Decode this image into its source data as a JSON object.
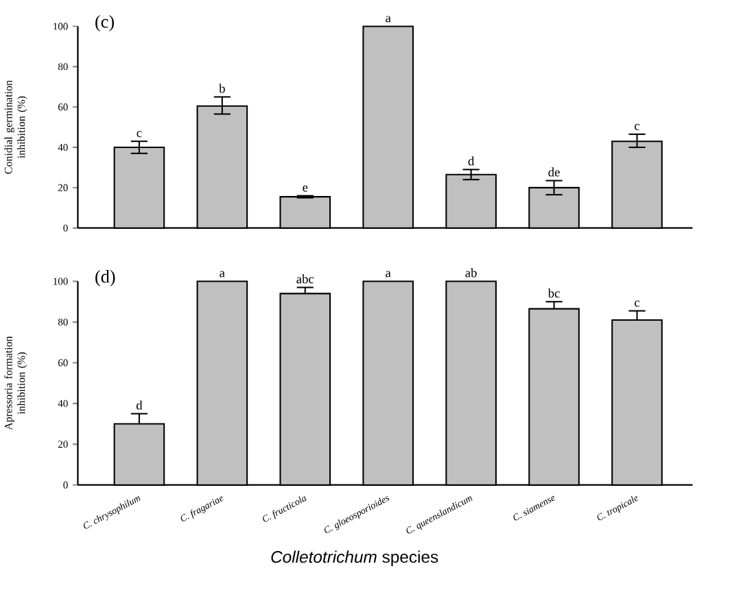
{
  "chart_data": [
    {
      "type": "bar",
      "title": "(c)",
      "ylabel": "Conidial germination inhibition (%)",
      "categories": [
        "C. chrysophilum",
        "C. fragariae",
        "C. fructicola",
        "C. gloeosporioides",
        "C. queenslandicum",
        "C. siamense",
        "C. tropicale"
      ],
      "values": [
        40,
        60.5,
        15.5,
        100,
        26.5,
        20,
        43
      ],
      "color": "#c0c0c0",
      "errors": [
        [
          37,
          43
        ],
        [
          56.5,
          65
        ],
        [
          15,
          16
        ],
        null,
        [
          24,
          29
        ],
        [
          16.5,
          23.5
        ],
        [
          40,
          46.5
        ]
      ],
      "ylim": [
        0,
        100
      ],
      "yticks": [
        0,
        20,
        40,
        60,
        80,
        100
      ],
      "tick_labels": "y",
      "annotations": [
        {
          "text": "c",
          "x": "C. chrysophilum",
          "y": 43
        },
        {
          "text": "b",
          "x": "C. fragariae",
          "y": 65
        },
        {
          "text": "e",
          "x": "C. fructicola",
          "y": 16
        },
        {
          "text": "a",
          "x": "C. gloeosporioides",
          "y": 100
        },
        {
          "text": "d",
          "x": "C. queenslandicum",
          "y": 29
        },
        {
          "text": "de",
          "x": "C. siamense",
          "y": 23.5
        },
        {
          "text": "c",
          "x": "C. tropicale",
          "y": 46.5
        }
      ]
    },
    {
      "type": "bar",
      "title": "(d)",
      "ylabel": "Apressoria formation inhibition (%)",
      "xlabel": "*Colletotrichum* species",
      "categories": [
        "C. chrysophilum",
        "C. fragariae",
        "C. fructicola",
        "C. gloeosporioides",
        "C. queenslandicum",
        "C. siamense",
        "C. tropicale"
      ],
      "values": [
        30,
        100,
        94,
        100,
        100,
        86.5,
        81
      ],
      "color": "#c0c0c0",
      "errors": [
        [
          30,
          35
        ],
        null,
        [
          94,
          97
        ],
        null,
        null,
        [
          86.5,
          90
        ],
        [
          81,
          85.5
        ]
      ],
      "ylim": [
        0,
        100
      ],
      "yticks": [
        0,
        20,
        40,
        60,
        80,
        100
      ],
      "annotations": [
        {
          "text": "d",
          "x": "C. chrysophilum",
          "y": 35
        },
        {
          "text": "a",
          "x": "C. fragariae",
          "y": 100
        },
        {
          "text": "abc",
          "x": "C. fructicola",
          "y": 97
        },
        {
          "text": "a",
          "x": "C. gloeosporioides",
          "y": 100
        },
        {
          "text": "ab",
          "x": "C. queenslandicum",
          "y": 100
        },
        {
          "text": "bc",
          "x": "C. siamense",
          "y": 90
        },
        {
          "text": "c",
          "x": "C. tropicale",
          "y": 85.5
        }
      ]
    }
  ]
}
